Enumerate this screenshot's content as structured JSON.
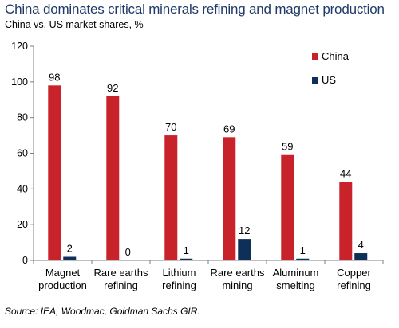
{
  "chart_data": {
    "type": "bar",
    "title": "China dominates critical minerals refining and magnet production",
    "subtitle": "China vs. US market shares, %",
    "source": "Source: IEA, Woodmac, Goldman Sachs GIR.",
    "categories": [
      [
        "Magnet",
        "production"
      ],
      [
        "Rare earths",
        "refining"
      ],
      [
        "Lithium",
        "refining"
      ],
      [
        "Rare earths",
        "mining"
      ],
      [
        "Aluminum",
        "smelting"
      ],
      [
        "Copper",
        "refining"
      ]
    ],
    "series": [
      {
        "name": "China",
        "color": "#c8232b",
        "values": [
          98,
          92,
          70,
          69,
          59,
          44
        ]
      },
      {
        "name": "US",
        "color": "#0e2f57",
        "values": [
          2,
          0,
          1,
          12,
          1,
          4
        ]
      }
    ],
    "ylim": [
      0,
      120
    ],
    "yticks": [
      0,
      20,
      40,
      60,
      80,
      100,
      120
    ],
    "legend": "top-right",
    "grid": false
  }
}
